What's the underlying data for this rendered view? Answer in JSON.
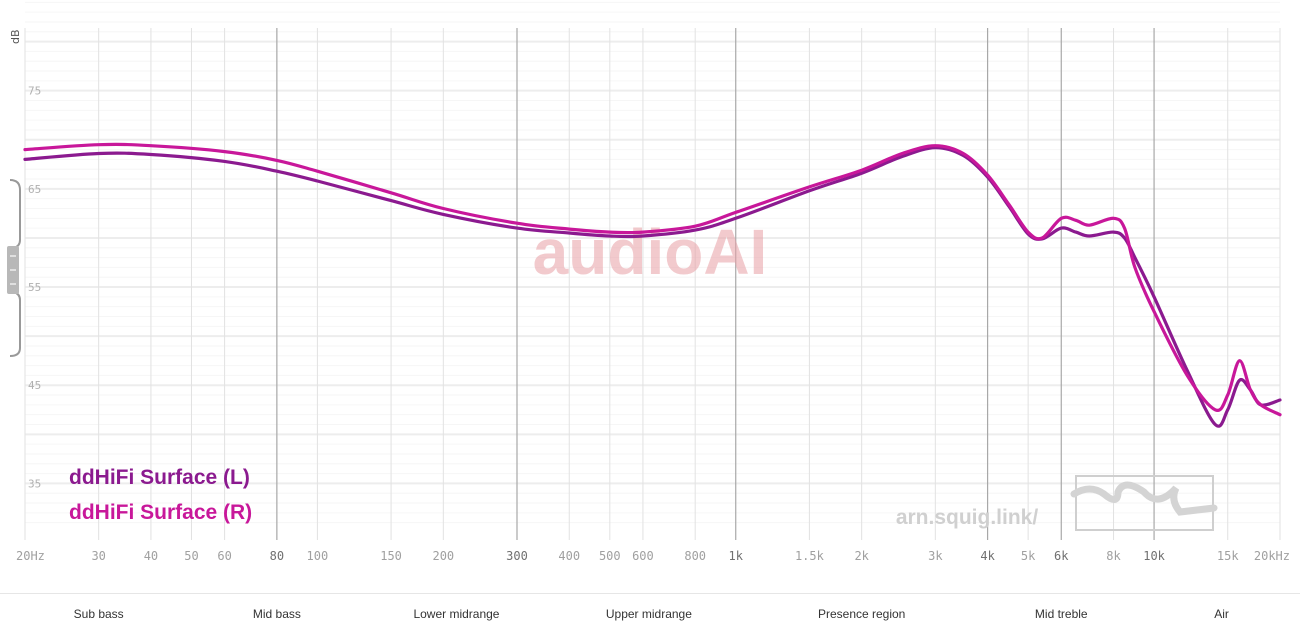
{
  "chart_data": {
    "type": "line",
    "ylabel": "dB",
    "x_scale": "log",
    "xlim": [
      20,
      20000
    ],
    "ylim": [
      30,
      85
    ],
    "y_ticks": [
      35,
      45,
      55,
      65,
      75,
      85
    ],
    "x_ticks": [
      {
        "value": 20,
        "label": "20Hz",
        "major": false
      },
      {
        "value": 30,
        "label": "30",
        "major": false
      },
      {
        "value": 40,
        "label": "40",
        "major": false
      },
      {
        "value": 50,
        "label": "50",
        "major": false
      },
      {
        "value": 60,
        "label": "60",
        "major": false
      },
      {
        "value": 80,
        "label": "80",
        "major": true
      },
      {
        "value": 100,
        "label": "100",
        "major": false
      },
      {
        "value": 150,
        "label": "150",
        "major": false
      },
      {
        "value": 200,
        "label": "200",
        "major": false
      },
      {
        "value": 300,
        "label": "300",
        "major": true
      },
      {
        "value": 400,
        "label": "400",
        "major": false
      },
      {
        "value": 500,
        "label": "500",
        "major": false
      },
      {
        "value": 600,
        "label": "600",
        "major": false
      },
      {
        "value": 800,
        "label": "800",
        "major": false
      },
      {
        "value": 1000,
        "label": "1k",
        "major": true
      },
      {
        "value": 1500,
        "label": "1.5k",
        "major": false
      },
      {
        "value": 2000,
        "label": "2k",
        "major": false
      },
      {
        "value": 3000,
        "label": "3k",
        "major": false
      },
      {
        "value": 4000,
        "label": "4k",
        "major": true
      },
      {
        "value": 5000,
        "label": "5k",
        "major": false
      },
      {
        "value": 6000,
        "label": "6k",
        "major": true
      },
      {
        "value": 8000,
        "label": "8k",
        "major": false
      },
      {
        "value": 10000,
        "label": "10k",
        "major": true
      },
      {
        "value": 15000,
        "label": "15k",
        "major": false
      },
      {
        "value": 20000,
        "label": "20kHz",
        "major": false
      }
    ],
    "series": [
      {
        "name": "ddHiFi Surface (L)",
        "color": "#8b1a8f",
        "points": [
          [
            20,
            68.0
          ],
          [
            30,
            68.6
          ],
          [
            40,
            68.5
          ],
          [
            60,
            67.8
          ],
          [
            80,
            66.8
          ],
          [
            100,
            65.8
          ],
          [
            150,
            63.8
          ],
          [
            200,
            62.4
          ],
          [
            300,
            61.0
          ],
          [
            400,
            60.5
          ],
          [
            500,
            60.2
          ],
          [
            600,
            60.2
          ],
          [
            800,
            60.8
          ],
          [
            1000,
            62.0
          ],
          [
            1500,
            64.8
          ],
          [
            2000,
            66.6
          ],
          [
            2500,
            68.3
          ],
          [
            3000,
            69.2
          ],
          [
            3500,
            68.4
          ],
          [
            4000,
            66.2
          ],
          [
            4500,
            63.2
          ],
          [
            5000,
            60.4
          ],
          [
            5400,
            59.9
          ],
          [
            6000,
            61.0
          ],
          [
            6500,
            60.6
          ],
          [
            7000,
            60.2
          ],
          [
            8000,
            60.6
          ],
          [
            8500,
            60.0
          ],
          [
            9000,
            58.0
          ],
          [
            10000,
            54.0
          ],
          [
            12000,
            46.5
          ],
          [
            14000,
            41.0
          ],
          [
            15000,
            42.5
          ],
          [
            16000,
            45.5
          ],
          [
            17000,
            44.5
          ],
          [
            18000,
            43.0
          ],
          [
            20000,
            43.5
          ]
        ]
      },
      {
        "name": "ddHiFi Surface (R)",
        "color": "#c8179a",
        "points": [
          [
            20,
            69.0
          ],
          [
            30,
            69.5
          ],
          [
            40,
            69.4
          ],
          [
            60,
            68.8
          ],
          [
            80,
            67.9
          ],
          [
            100,
            66.8
          ],
          [
            150,
            64.6
          ],
          [
            200,
            63.0
          ],
          [
            300,
            61.5
          ],
          [
            400,
            60.9
          ],
          [
            500,
            60.6
          ],
          [
            600,
            60.6
          ],
          [
            800,
            61.2
          ],
          [
            1000,
            62.6
          ],
          [
            1500,
            65.2
          ],
          [
            2000,
            66.9
          ],
          [
            2500,
            68.6
          ],
          [
            3000,
            69.4
          ],
          [
            3500,
            68.6
          ],
          [
            4000,
            66.4
          ],
          [
            4500,
            63.4
          ],
          [
            5000,
            60.6
          ],
          [
            5400,
            60.0
          ],
          [
            6000,
            62.0
          ],
          [
            6500,
            61.8
          ],
          [
            7000,
            61.3
          ],
          [
            8000,
            62.0
          ],
          [
            8500,
            61.0
          ],
          [
            9000,
            57.0
          ],
          [
            10000,
            52.5
          ],
          [
            12000,
            46.0
          ],
          [
            14000,
            42.5
          ],
          [
            15000,
            44.0
          ],
          [
            16000,
            47.5
          ],
          [
            17000,
            44.5
          ],
          [
            18000,
            43.0
          ],
          [
            20000,
            42.0
          ]
        ]
      }
    ]
  },
  "legend": {
    "items": [
      {
        "label": "ddHiFi Surface (L)",
        "color": "#8b1a8f"
      },
      {
        "label": "ddHiFi Surface (R)",
        "color": "#c8179a"
      }
    ]
  },
  "watermark": {
    "text": "audioAI"
  },
  "site": {
    "url": "arn.squig.link/"
  },
  "bands": [
    {
      "label": "Sub bass",
      "freq": 30
    },
    {
      "label": "Mid bass",
      "freq": 80
    },
    {
      "label": "Lower midrange",
      "freq": 215
    },
    {
      "label": "Upper midrange",
      "freq": 620
    },
    {
      "label": "Presence region",
      "freq": 2000
    },
    {
      "label": "Mid treble",
      "freq": 6000
    },
    {
      "label": "Air",
      "freq": 14500
    }
  ]
}
